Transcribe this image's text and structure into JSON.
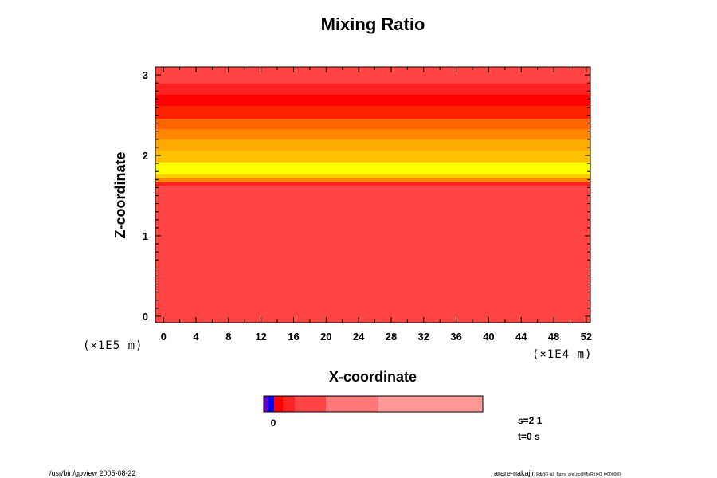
{
  "chart_data": {
    "type": "heatmap",
    "title": "Mixing Ratio",
    "xlabel": "X-coordinate",
    "ylabel": "Z-coordinate",
    "x_unit_label": "(×1E4 m)",
    "z_unit_label": "(×1E5 m)",
    "xlim": [
      -1,
      52.5
    ],
    "ylim": [
      -0.08,
      3.1
    ],
    "x_ticks": [
      0,
      4,
      8,
      12,
      16,
      20,
      24,
      28,
      32,
      36,
      40,
      44,
      48,
      52
    ],
    "x_tick_labels": [
      "0",
      "4",
      "8",
      "12",
      "16",
      "20",
      "24",
      "28",
      "32",
      "36",
      "40",
      "44",
      "48",
      "52"
    ],
    "y_ticks": [
      0,
      1,
      2,
      3
    ],
    "y_tick_labels": [
      "0",
      "1",
      "2",
      "3"
    ],
    "bands": [
      {
        "z0": -0.08,
        "z1": 1.63,
        "color": "#ff4444"
      },
      {
        "z0": 1.63,
        "z1": 1.67,
        "color": "#ff2222"
      },
      {
        "z0": 1.67,
        "z1": 1.72,
        "color": "#ff8800"
      },
      {
        "z0": 1.72,
        "z1": 1.77,
        "color": "#ffcc00"
      },
      {
        "z0": 1.77,
        "z1": 1.92,
        "color": "#ffff00"
      },
      {
        "z0": 1.92,
        "z1": 2.06,
        "color": "#ffc000"
      },
      {
        "z0": 2.06,
        "z1": 2.2,
        "color": "#ffaa00"
      },
      {
        "z0": 2.2,
        "z1": 2.33,
        "color": "#ff8800"
      },
      {
        "z0": 2.33,
        "z1": 2.46,
        "color": "#ff6600"
      },
      {
        "z0": 2.46,
        "z1": 2.62,
        "color": "#ff2200"
      },
      {
        "z0": 2.62,
        "z1": 2.76,
        "color": "#ff0000"
      },
      {
        "z0": 2.76,
        "z1": 2.9,
        "color": "#ff2222"
      },
      {
        "z0": 2.9,
        "z1": 3.1,
        "color": "#ff4444"
      }
    ],
    "colorbar": {
      "segments": [
        {
          "color": "#6600cc",
          "weight": 6
        },
        {
          "color": "#0000ff",
          "weight": 7
        },
        {
          "color": "#ff0000",
          "weight": 11
        },
        {
          "color": "#ff2222",
          "weight": 15
        },
        {
          "color": "#ff4444",
          "weight": 39
        },
        {
          "color": "#ff7777",
          "weight": 66
        },
        {
          "color": "#ff9999",
          "weight": 131
        }
      ],
      "tick_label": "0"
    },
    "info": {
      "s": "s=2 1",
      "t": "t=0 s"
    },
    "footer_left": "/usr/bin/gpview 2005-08-22",
    "footer_right_main": "arare-nakajima",
    "footer_right_small": "@3_all_Barry_arel,nc@MixRt(t=0) t=000000"
  }
}
